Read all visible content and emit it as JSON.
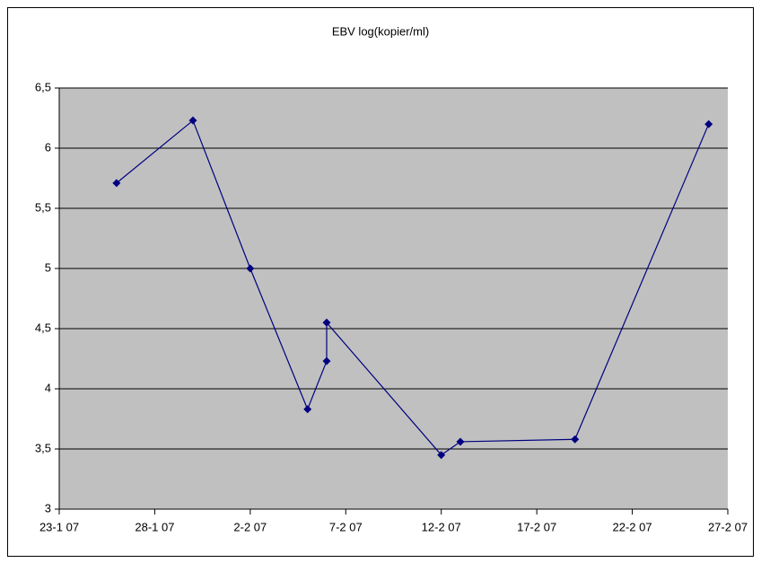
{
  "chart_data": {
    "type": "line",
    "title": "EBV log(kopier/ml)",
    "x": [
      "2007-01-26",
      "2007-01-30",
      "2007-02-02",
      "2007-02-05",
      "2007-02-06",
      "2007-02-06",
      "2007-02-12",
      "2007-02-13",
      "2007-02-19",
      "2007-02-26"
    ],
    "series": [
      {
        "color": "#000080",
        "values": [
          5.71,
          6.23,
          5.0,
          3.83,
          4.23,
          4.55,
          3.45,
          3.56,
          3.58,
          6.2
        ]
      }
    ],
    "xlim": [
      "2007-01-23",
      "2007-02-27"
    ],
    "xticks": [
      {
        "value": "2007-01-23",
        "label": "23-1 07"
      },
      {
        "value": "2007-01-28",
        "label": "28-1 07"
      },
      {
        "value": "2007-02-02",
        "label": "2-2 07"
      },
      {
        "value": "2007-02-07",
        "label": "7-2 07"
      },
      {
        "value": "2007-02-12",
        "label": "12-2 07"
      },
      {
        "value": "2007-02-17",
        "label": "17-2 07"
      },
      {
        "value": "2007-02-22",
        "label": "22-2 07"
      },
      {
        "value": "2007-02-27",
        "label": "27-2 07"
      }
    ],
    "ylim": [
      3,
      6.5
    ],
    "yticks": [
      3,
      {
        "value": 3.5,
        "label": "3,5"
      },
      4,
      {
        "value": 4.5,
        "label": "4,5"
      },
      5,
      {
        "value": 5.5,
        "label": "5,5"
      },
      6,
      {
        "value": 6.5,
        "label": "6,5"
      }
    ],
    "grid": true,
    "plot_background": "#c0c0c0"
  }
}
